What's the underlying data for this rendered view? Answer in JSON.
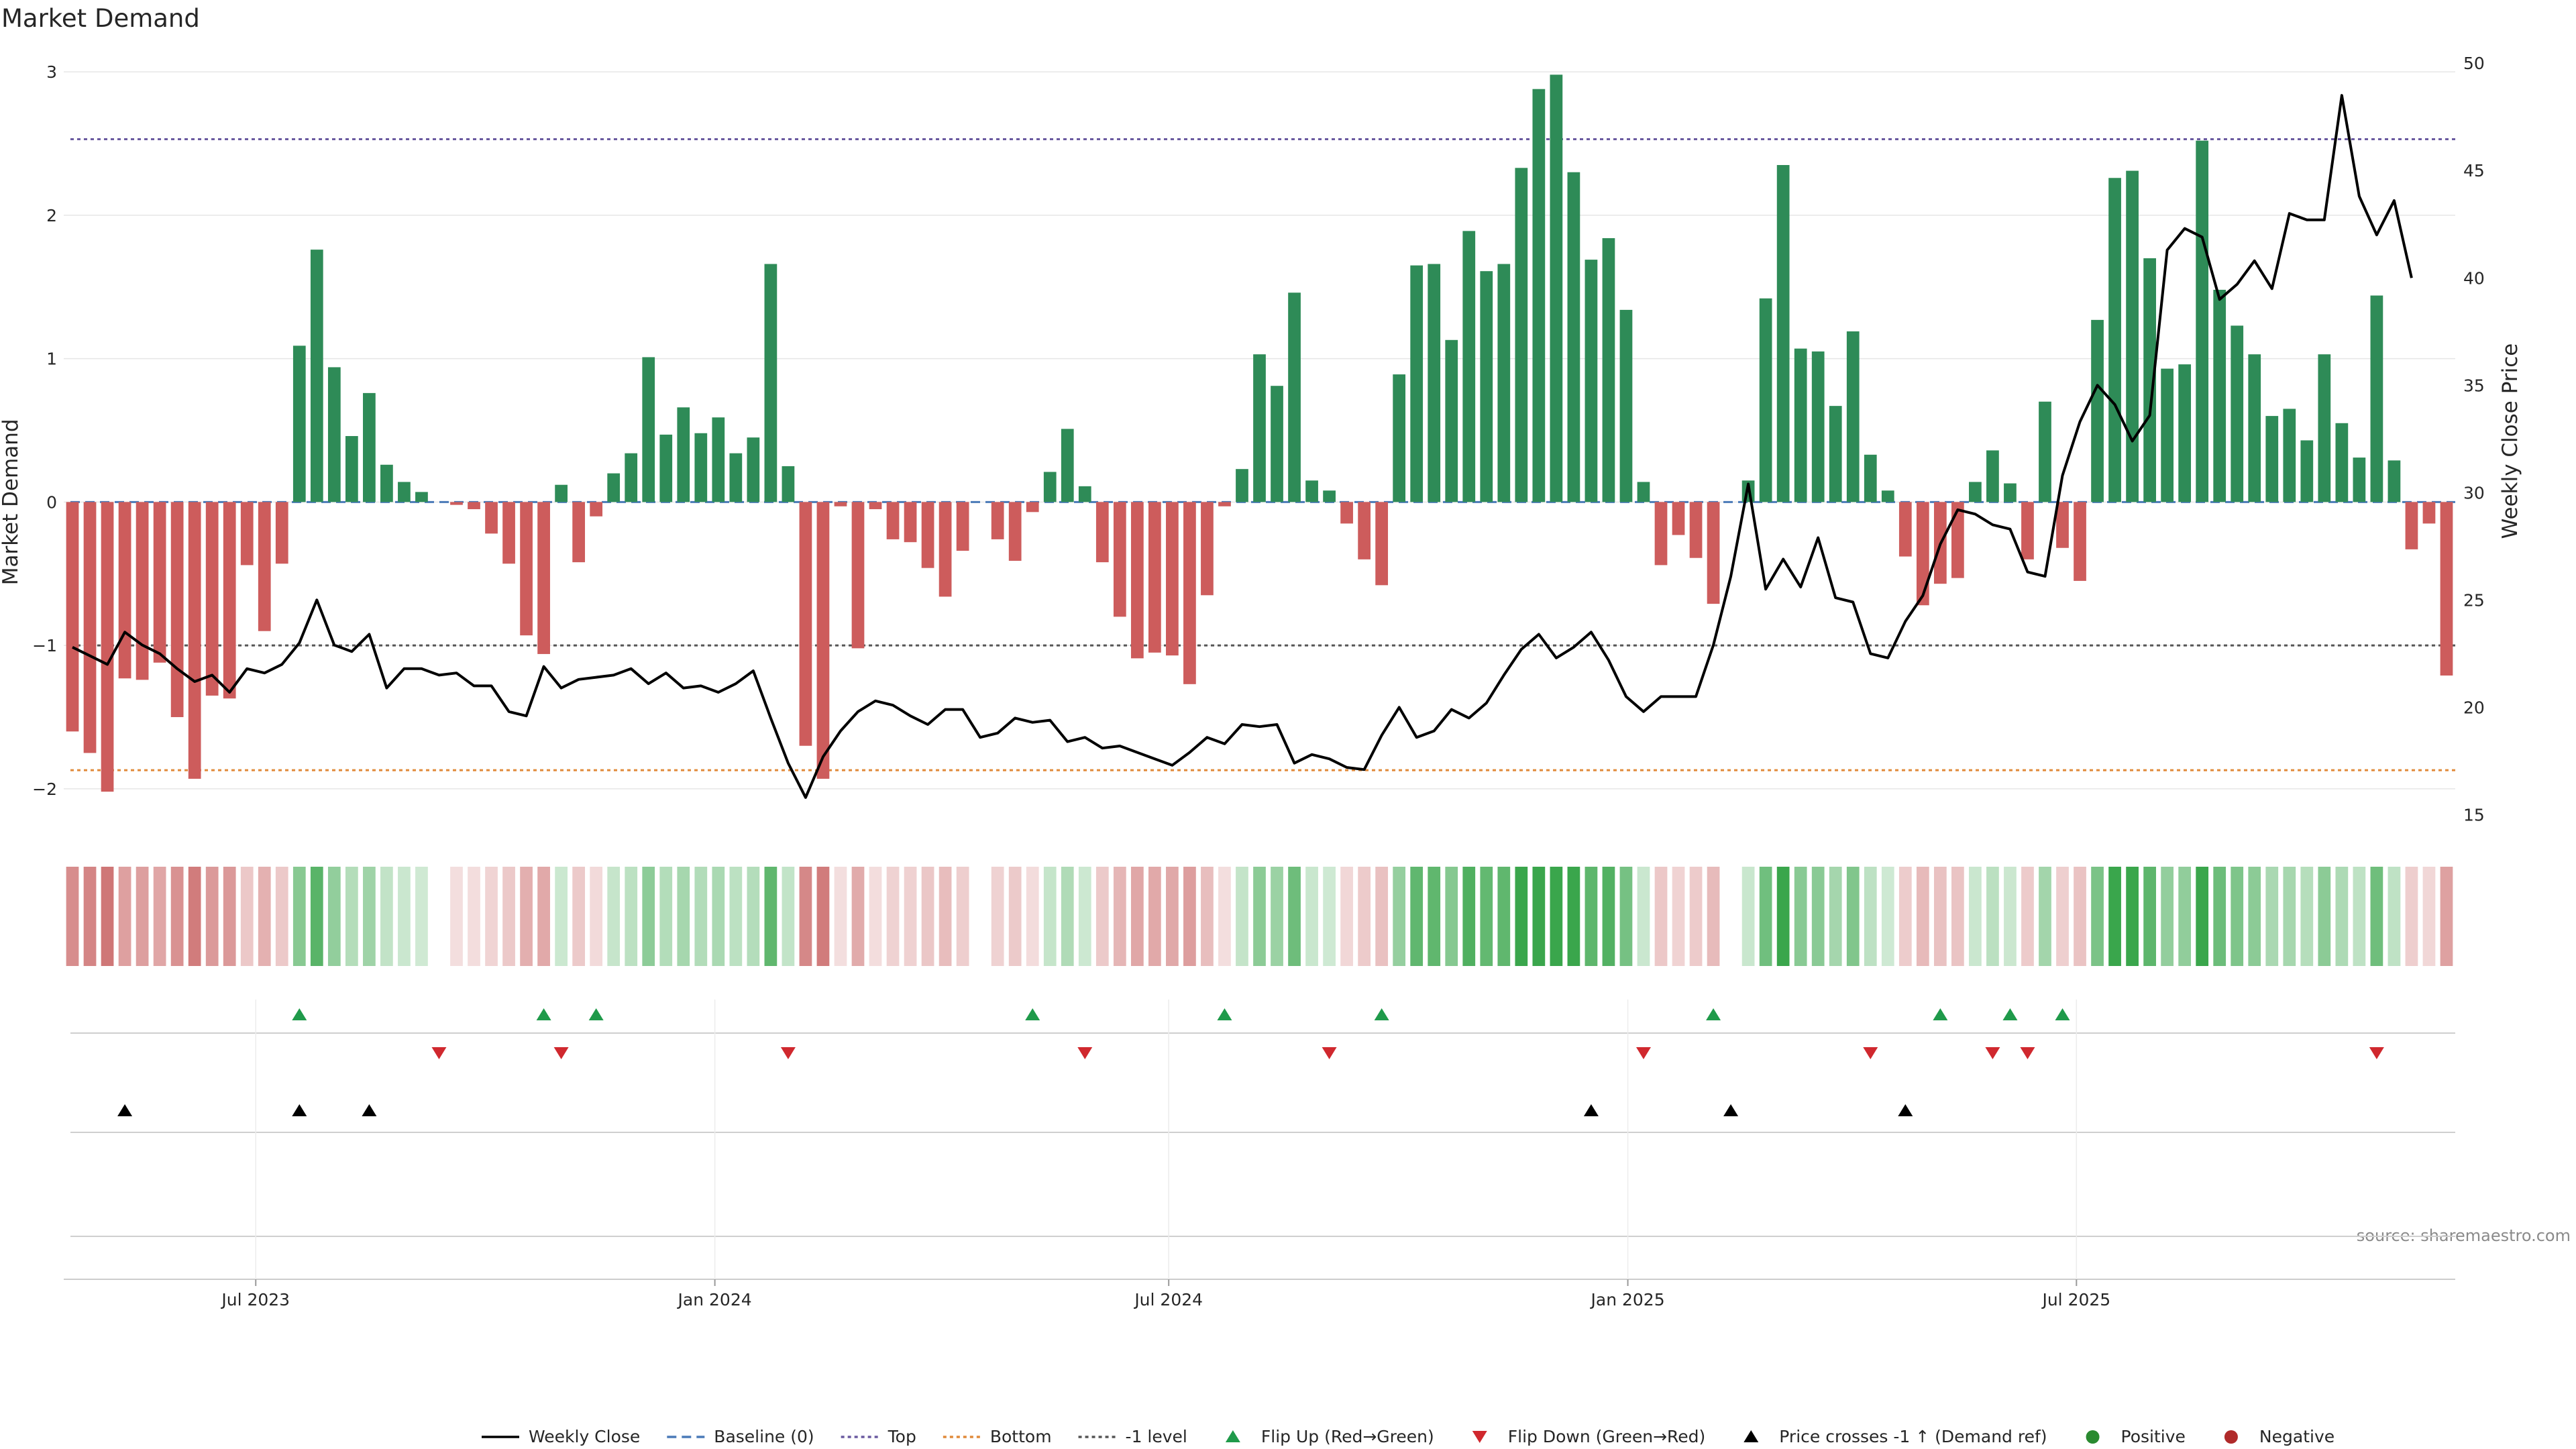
{
  "chart_data": {
    "type": "bar",
    "title": "Market Demand",
    "ylabel": "Market Demand",
    "y2label": "Weekly Close Price",
    "source": "source: sharemaestro.com",
    "ylim": [
      -2.3,
      3.15
    ],
    "y2lim": [
      14.2,
      50.6
    ],
    "yticks": [
      -2,
      -1,
      0,
      1,
      2,
      3
    ],
    "y2ticks": [
      15,
      20,
      25,
      30,
      35,
      40,
      45,
      50
    ],
    "xticks": [
      {
        "label": "Jul 2023",
        "index": 11
      },
      {
        "label": "Jan 2024",
        "index": 37.3
      },
      {
        "label": "Jul 2024",
        "index": 63.3
      },
      {
        "label": "Jan 2025",
        "index": 89.6
      },
      {
        "label": "Jul 2025",
        "index": 115.3
      }
    ],
    "levels": {
      "top": 2.53,
      "bottom": -1.87,
      "minus_one": -1.0,
      "baseline": 0
    },
    "demand": [
      -1.6,
      -1.75,
      -2.02,
      -1.23,
      -1.24,
      -1.12,
      -1.5,
      -1.93,
      -1.35,
      -1.37,
      -0.44,
      -0.9,
      -0.43,
      1.09,
      1.76,
      0.94,
      0.46,
      0.76,
      0.26,
      0.14,
      0.07,
      0.0,
      -0.02,
      -0.05,
      -0.22,
      -0.43,
      -0.93,
      -1.06,
      0.12,
      -0.42,
      -0.1,
      0.2,
      0.34,
      1.01,
      0.47,
      0.66,
      0.48,
      0.59,
      0.34,
      0.45,
      1.66,
      0.25,
      -1.7,
      -1.93,
      -0.03,
      -1.02,
      -0.05,
      -0.26,
      -0.28,
      -0.46,
      -0.66,
      -0.34,
      0.0,
      -0.26,
      -0.41,
      -0.07,
      0.21,
      0.51,
      0.11,
      -0.42,
      -0.8,
      -1.09,
      -1.05,
      -1.07,
      -1.27,
      -0.65,
      -0.03,
      0.23,
      1.03,
      0.81,
      1.46,
      0.15,
      0.08,
      -0.15,
      -0.4,
      -0.58,
      0.89,
      1.65,
      1.66,
      1.13,
      1.89,
      1.61,
      1.66,
      2.33,
      2.88,
      2.98,
      2.3,
      1.69,
      1.84,
      1.34,
      0.14,
      -0.44,
      -0.23,
      -0.39,
      -0.71,
      0.0,
      0.15,
      1.42,
      2.35,
      1.07,
      1.05,
      0.67,
      1.19,
      0.33,
      0.08,
      -0.38,
      -0.72,
      -0.57,
      -0.53,
      0.14,
      0.36,
      0.13,
      -0.4,
      0.7,
      -0.32,
      -0.55,
      1.27,
      2.26,
      2.31,
      1.7,
      0.93,
      0.96,
      2.52,
      1.48,
      1.23,
      1.03,
      0.6,
      0.65,
      0.43,
      1.03,
      0.55,
      0.31,
      1.44,
      0.29,
      -0.33,
      -0.15,
      -1.21
    ],
    "price": [
      22.8,
      22.4,
      22.0,
      23.5,
      22.9,
      22.5,
      21.8,
      21.2,
      21.5,
      20.7,
      21.8,
      21.6,
      22.0,
      23.0,
      25.0,
      22.9,
      22.6,
      23.4,
      20.9,
      21.8,
      21.8,
      21.5,
      21.6,
      21.0,
      21.0,
      19.8,
      19.6,
      21.9,
      20.9,
      21.3,
      21.4,
      21.5,
      21.8,
      21.1,
      21.6,
      20.9,
      21.0,
      20.7,
      21.1,
      21.7,
      19.5,
      17.4,
      15.8,
      17.7,
      18.9,
      19.8,
      20.3,
      20.1,
      19.6,
      19.2,
      19.9,
      19.9,
      18.6,
      18.8,
      19.5,
      19.3,
      19.4,
      18.4,
      18.6,
      18.1,
      18.2,
      17.9,
      17.6,
      17.3,
      17.9,
      18.6,
      18.3,
      19.2,
      19.1,
      19.2,
      17.4,
      17.8,
      17.6,
      17.2,
      17.1,
      18.7,
      20.0,
      18.6,
      18.9,
      19.9,
      19.5,
      20.2,
      21.5,
      22.7,
      23.4,
      22.3,
      22.8,
      23.5,
      22.2,
      20.5,
      19.8,
      20.5,
      20.5,
      20.5,
      22.9,
      26.1,
      30.4,
      25.5,
      26.9,
      25.6,
      27.9,
      25.1,
      24.9,
      22.5,
      22.3,
      24.0,
      25.2,
      27.6,
      29.2,
      29.0,
      28.5,
      28.3,
      26.3,
      26.1,
      30.8,
      33.3,
      35.0,
      34.1,
      32.4,
      33.6,
      41.3,
      42.3,
      41.9,
      39.0,
      39.7,
      40.8,
      39.5,
      43.0,
      42.7,
      42.7,
      48.5,
      43.8,
      42.0,
      43.6,
      40.0
    ],
    "flip_up": [
      13,
      27,
      30,
      55,
      66,
      75,
      94,
      107,
      111,
      114
    ],
    "flip_down": [
      21,
      28,
      41,
      58,
      72,
      90,
      103,
      110,
      112,
      132
    ],
    "price_cross": [
      3,
      13,
      17,
      87,
      95,
      105
    ],
    "legend": [
      {
        "label": "Weekly Close",
        "kind": "line-solid",
        "color": "#000000"
      },
      {
        "label": "Baseline (0)",
        "kind": "line-dashed",
        "color": "#4a7ab8"
      },
      {
        "label": "Top",
        "kind": "line-dotted",
        "color": "#6a5aa0"
      },
      {
        "label": "Bottom",
        "kind": "line-dotted",
        "color": "#e08a3a"
      },
      {
        "label": "-1 level",
        "kind": "line-dotted",
        "color": "#555555"
      },
      {
        "label": "Flip Up (Red→Green)",
        "kind": "tri-up",
        "color": "#1f9a4a"
      },
      {
        "label": "Flip Down (Green→Red)",
        "kind": "tri-down",
        "color": "#d0282e"
      },
      {
        "label": "Price crosses -1 ↑ (Demand ref)",
        "kind": "tri-up",
        "color": "#000000"
      },
      {
        "label": "Positive",
        "kind": "dot",
        "color": "#2a8a30"
      },
      {
        "label": "Negative",
        "kind": "dot",
        "color": "#b02a2a"
      }
    ],
    "colors": {
      "positive_bar": "#2e8b57",
      "negative_bar": "#cd5c5c",
      "price_line": "#000000",
      "grid": "#e6e6e6",
      "axis": "#cccccc"
    }
  }
}
